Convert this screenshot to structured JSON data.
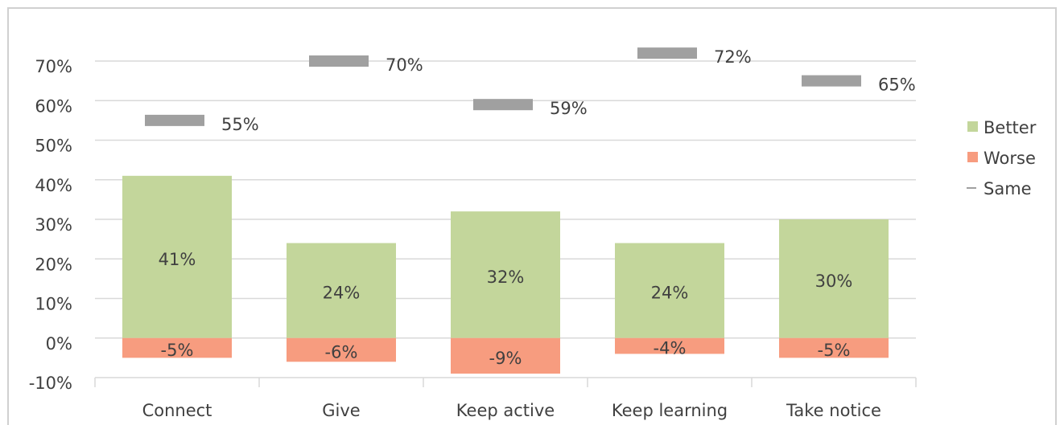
{
  "chart_data": {
    "type": "bar",
    "categories": [
      "Connect",
      "Give",
      "Keep active",
      "Keep learning",
      "Take notice"
    ],
    "series": [
      {
        "name": "Better",
        "color": "#c3d69b",
        "mark": "bar",
        "values": [
          41,
          24,
          32,
          24,
          30
        ],
        "value_labels": [
          "41%",
          "24%",
          "32%",
          "24%",
          "30%"
        ]
      },
      {
        "name": "Worse",
        "color": "#f79c7f",
        "mark": "bar",
        "values": [
          -5,
          -6,
          -9,
          -4,
          -5
        ],
        "value_labels": [
          "-5%",
          "-6%",
          "-9%",
          "-4%",
          "-5%"
        ]
      },
      {
        "name": "Same",
        "color": "#a0a0a0",
        "mark": "dash",
        "values": [
          55,
          70,
          59,
          72,
          65
        ],
        "value_labels": [
          "55%",
          "70%",
          "59%",
          "72%",
          "65%"
        ]
      }
    ],
    "ylim": [
      -10,
      70
    ],
    "yticks": [
      {
        "value": -10,
        "label": "-10%"
      },
      {
        "value": 0,
        "label": "0%"
      },
      {
        "value": 10,
        "label": "10%"
      },
      {
        "value": 20,
        "label": "20%"
      },
      {
        "value": 30,
        "label": "30%"
      },
      {
        "value": 40,
        "label": "40%"
      },
      {
        "value": 50,
        "label": "50%"
      },
      {
        "value": 60,
        "label": "60%"
      },
      {
        "value": 70,
        "label": "70%"
      }
    ],
    "grid": true,
    "legend": "right"
  }
}
